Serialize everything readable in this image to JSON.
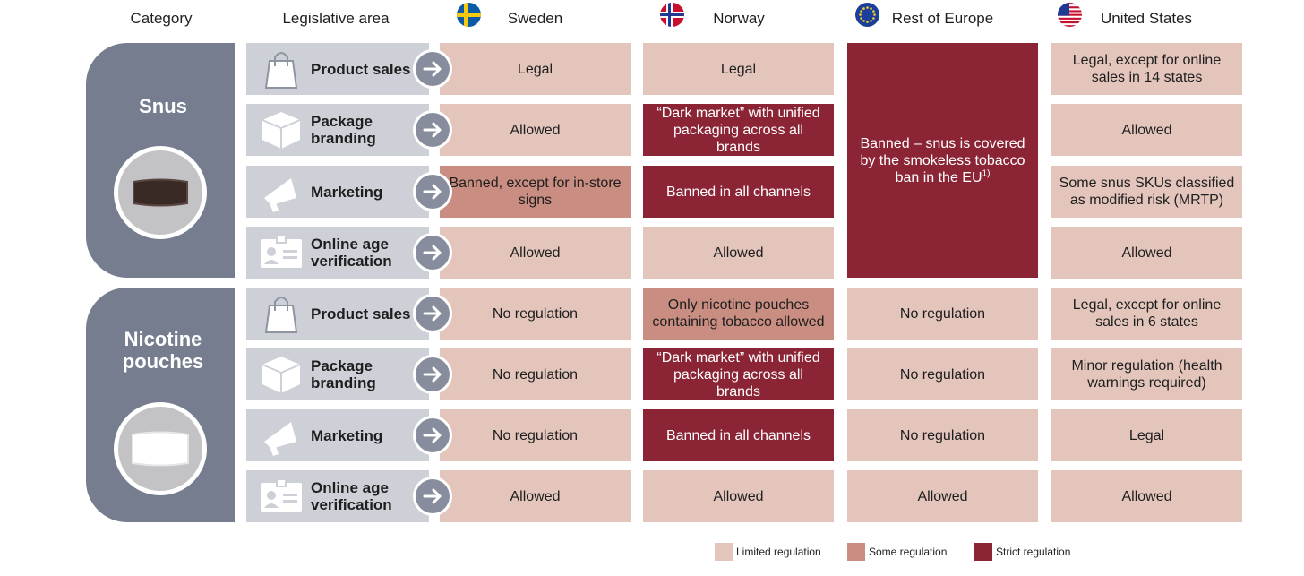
{
  "headers": {
    "category": "Category",
    "legislative_area": "Legislative area",
    "sweden": "Sweden",
    "norway": "Norway",
    "rest_of_europe": "Rest of Europe",
    "united_states": "United States"
  },
  "categories": {
    "snus": "Snus",
    "nicotine_line1": "Nicotine",
    "nicotine_line2": "pouches"
  },
  "areas": {
    "product_sales": "Product sales",
    "package_line1": "Package",
    "package_line2": "branding",
    "marketing": "Marketing",
    "online_line1": "Online age",
    "online_line2": "verification"
  },
  "cells": {
    "snus_se": [
      "Legal",
      "Allowed",
      "Banned, except for in-store signs",
      "Allowed"
    ],
    "snus_no": [
      "Legal",
      "“Dark market” with unified packaging across all brands",
      "Banned in all channels",
      "Allowed"
    ],
    "snus_eu": "Banned – snus is covered by the smokeless tobacco ban in the EU",
    "snus_eu_sup": "1)",
    "snus_us": [
      "Legal, except for online sales in 14 states",
      "Allowed",
      "Some snus SKUs classified as modified risk (MRTP)",
      "Allowed"
    ],
    "np_se": [
      "No regulation",
      "No regulation",
      "No regulation",
      "Allowed"
    ],
    "np_no": [
      "Only nicotine pouches containing tobacco allowed",
      "“Dark market” with unified packaging across all brands",
      "Banned in all channels",
      "Allowed"
    ],
    "np_eu": [
      "No regulation",
      "No regulation",
      "No regulation",
      "Allowed"
    ],
    "np_us": [
      "Legal, except for online sales in 6 states",
      "Minor regulation (health warnings required)",
      "Legal",
      "Allowed"
    ]
  },
  "legend": {
    "limited": "Limited regulation",
    "some": "Some regulation",
    "strict": "Strict regulation"
  },
  "colors": {
    "limited": "#e3c5bc",
    "some": "#c98d81",
    "strict": "#8b2535",
    "category_panel": "#757d8e",
    "area_panel": "#cdd0d7"
  }
}
